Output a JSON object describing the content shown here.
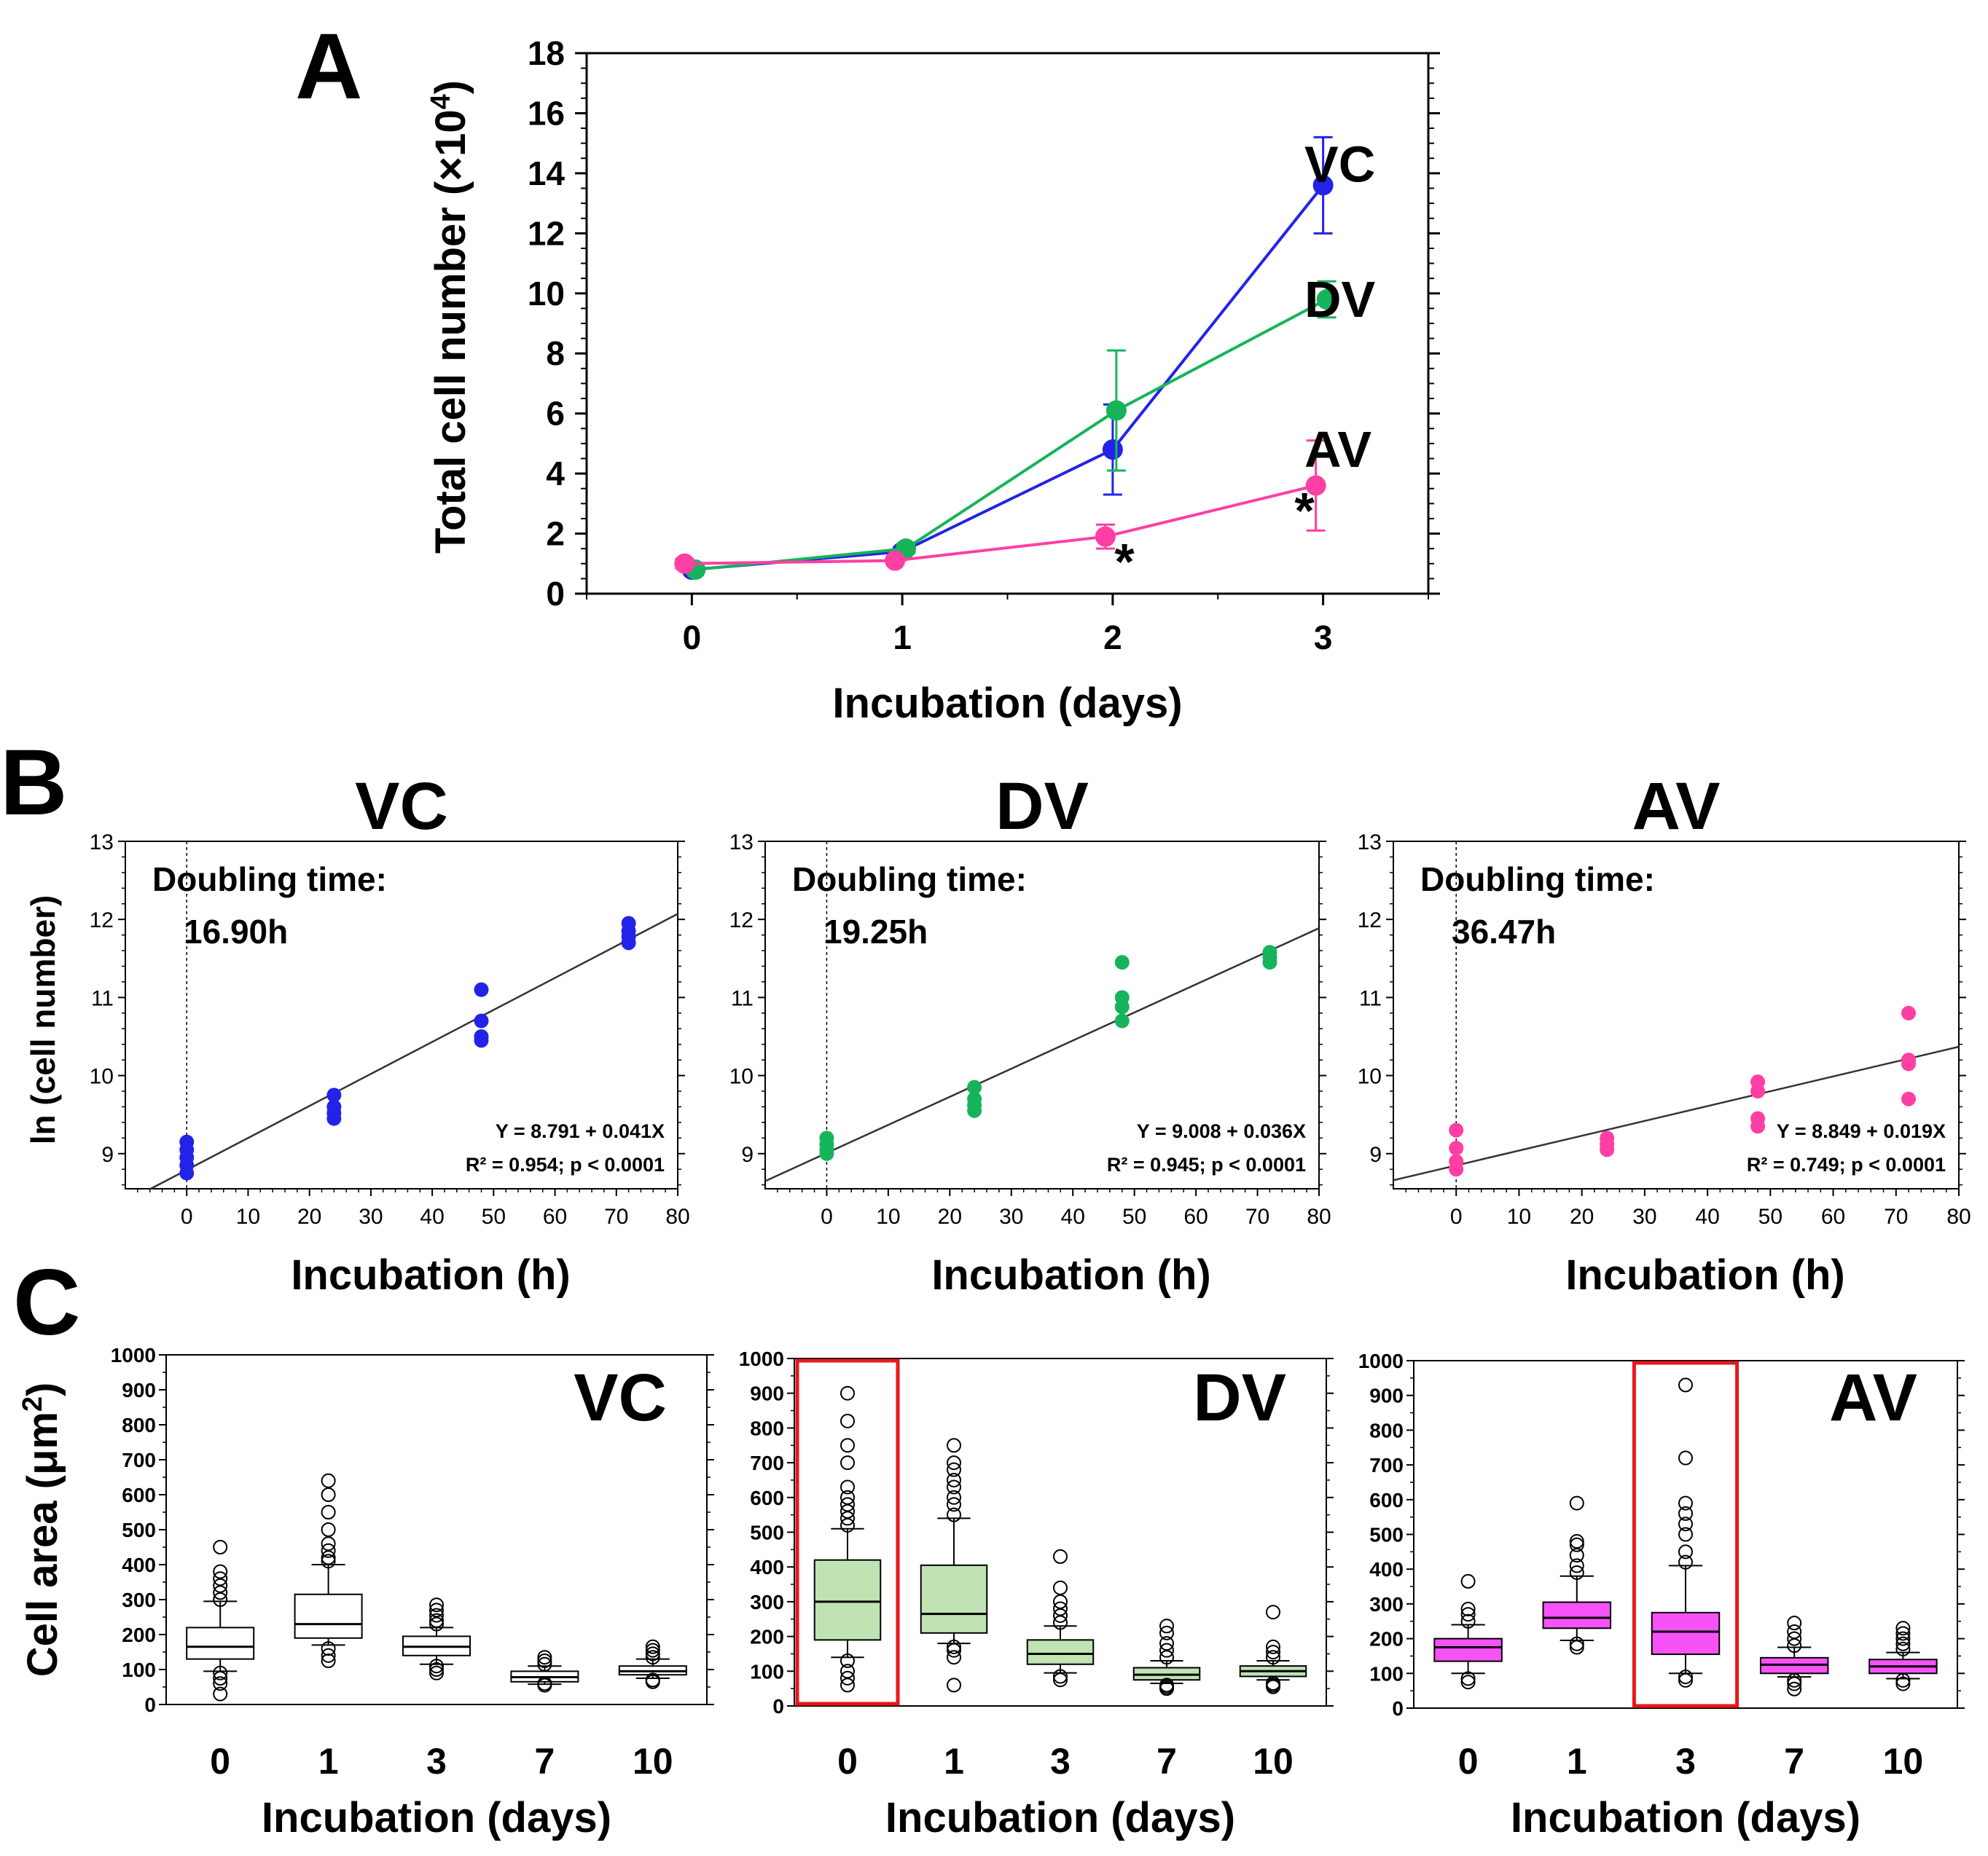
{
  "panel_labels": {
    "A": "A",
    "B": "B",
    "C": "C"
  },
  "colors": {
    "VC": "#2323e8",
    "DV": "#16b45a",
    "AV": "#ff3fa3",
    "VC_box": "#ffffff",
    "DV_box": "#bfe3b3",
    "AV_box": "#f752f7",
    "highlight": "#e8171b"
  },
  "chart_data": [
    {
      "id": "A",
      "type": "line",
      "xlabel": "Incubation (days)",
      "ylabel": "Total cell number (×10⁴)",
      "ylabel_base": "Total cell number (×10",
      "ylabel_exp": "4",
      "ylabel_close": ")",
      "x": [
        0,
        1,
        2,
        3
      ],
      "xlim": [
        -0.5,
        3.5
      ],
      "ylim": [
        0,
        18
      ],
      "yticks": [
        0,
        2,
        4,
        6,
        8,
        10,
        12,
        14,
        16,
        18
      ],
      "series": [
        {
          "name": "VC",
          "color": "#2323e8",
          "values": [
            0.8,
            1.4,
            4.8,
            13.6
          ],
          "err": [
            0.0,
            0.15,
            1.5,
            1.6
          ],
          "label_y": 14.3
        },
        {
          "name": "DV",
          "color": "#16b45a",
          "values": [
            0.8,
            1.5,
            6.1,
            9.8
          ],
          "err": [
            0.0,
            0.15,
            2.0,
            0.6
          ],
          "label_y": 9.8
        },
        {
          "name": "AV",
          "color": "#ff3fa3",
          "values": [
            1.0,
            1.1,
            1.9,
            3.6
          ],
          "err": [
            0.15,
            0.1,
            0.4,
            1.5
          ],
          "label_y": 4.8
        }
      ],
      "annotations": [
        "*",
        "*"
      ]
    },
    {
      "id": "B_VC",
      "type": "scatter",
      "title": "VC",
      "color": "#2323e8",
      "xlabel": "Incubation (h)",
      "ylabel": "ln (cell number)",
      "xlim": [
        -10,
        80
      ],
      "ylim": [
        8.55,
        13
      ],
      "xticks": [
        0,
        10,
        20,
        30,
        40,
        50,
        60,
        70,
        80
      ],
      "yticks": [
        9,
        10,
        11,
        12,
        13
      ],
      "doubling_label": "Doubling time:",
      "doubling_value": "16.90h",
      "equation": "Y = 8.791 + 0.041X",
      "stats": "R² = 0.954; p < 0.0001",
      "fit": {
        "intercept": 8.791,
        "slope": 0.041
      },
      "points": [
        [
          0,
          8.75
        ],
        [
          0,
          8.85
        ],
        [
          0,
          8.95
        ],
        [
          0,
          9.05
        ],
        [
          0,
          9.15
        ],
        [
          24,
          9.45
        ],
        [
          24,
          9.52
        ],
        [
          24,
          9.6
        ],
        [
          24,
          9.75
        ],
        [
          48,
          10.45
        ],
        [
          48,
          10.5
        ],
        [
          48,
          10.7
        ],
        [
          48,
          11.1
        ],
        [
          72,
          11.7
        ],
        [
          72,
          11.78
        ],
        [
          72,
          11.85
        ],
        [
          72,
          11.95
        ]
      ]
    },
    {
      "id": "B_DV",
      "type": "scatter",
      "title": "DV",
      "color": "#16b45a",
      "xlabel": "Incubation (h)",
      "xlim": [
        -10,
        80
      ],
      "ylim": [
        8.55,
        13
      ],
      "xticks": [
        0,
        10,
        20,
        30,
        40,
        50,
        60,
        70,
        80
      ],
      "yticks": [
        9,
        10,
        11,
        12,
        13
      ],
      "doubling_label": "Doubling time:",
      "doubling_value": "19.25h",
      "equation": "Y = 9.008 + 0.036X",
      "stats": "R² = 0.945; p < 0.0001",
      "fit": {
        "intercept": 9.008,
        "slope": 0.036
      },
      "points": [
        [
          0,
          9.0
        ],
        [
          0,
          9.05
        ],
        [
          0,
          9.12
        ],
        [
          0,
          9.2
        ],
        [
          24,
          9.55
        ],
        [
          24,
          9.62
        ],
        [
          24,
          9.7
        ],
        [
          24,
          9.85
        ],
        [
          48,
          10.7
        ],
        [
          48,
          10.88
        ],
        [
          48,
          11.0
        ],
        [
          48,
          11.45
        ],
        [
          72,
          11.45
        ],
        [
          72,
          11.52
        ],
        [
          72,
          11.58
        ]
      ]
    },
    {
      "id": "B_AV",
      "type": "scatter",
      "title": "AV",
      "color": "#ff3fa3",
      "xlabel": "Incubation (h)",
      "xlim": [
        -10,
        80
      ],
      "ylim": [
        8.55,
        13
      ],
      "xticks": [
        0,
        10,
        20,
        30,
        40,
        50,
        60,
        70,
        80
      ],
      "yticks": [
        9,
        10,
        11,
        12,
        13
      ],
      "doubling_label": "Doubling time:",
      "doubling_value": "36.47h",
      "equation": "Y = 8.849 + 0.019X",
      "stats": "R² = 0.749; p < 0.0001",
      "fit": {
        "intercept": 8.849,
        "slope": 0.019
      },
      "points": [
        [
          0,
          8.8
        ],
        [
          0,
          8.9
        ],
        [
          0,
          9.07
        ],
        [
          0,
          9.3
        ],
        [
          24,
          9.05
        ],
        [
          24,
          9.12
        ],
        [
          24,
          9.2
        ],
        [
          48,
          9.35
        ],
        [
          48,
          9.45
        ],
        [
          48,
          9.8
        ],
        [
          48,
          9.92
        ],
        [
          72,
          9.7
        ],
        [
          72,
          10.15
        ],
        [
          72,
          10.2
        ],
        [
          72,
          10.8
        ]
      ]
    },
    {
      "id": "C_VC",
      "type": "box",
      "title": "VC",
      "fill": "#ffffff",
      "ylabel": "Cell area (μm²)",
      "ylabel_base": "Cell area (μm",
      "ylabel_exp": "2",
      "ylabel_close": ")",
      "xlabel": "Incubation (days)",
      "categories": [
        "0",
        "1",
        "3",
        "7",
        "10"
      ],
      "ylim": [
        0,
        1000
      ],
      "yticks": [
        0,
        100,
        200,
        300,
        400,
        500,
        600,
        700,
        800,
        900,
        1000
      ],
      "highlight": [],
      "boxes": [
        {
          "q1": 130,
          "median": 165,
          "q3": 220,
          "lo": 95,
          "hi": 295,
          "outliers": [
            30,
            60,
            75,
            90,
            300,
            320,
            340,
            360,
            380,
            450
          ]
        },
        {
          "q1": 190,
          "median": 230,
          "q3": 315,
          "lo": 170,
          "hi": 400,
          "outliers": [
            125,
            140,
            160,
            410,
            420,
            440,
            460,
            500,
            550,
            600,
            640
          ]
        },
        {
          "q1": 140,
          "median": 165,
          "q3": 195,
          "lo": 115,
          "hi": 220,
          "outliers": [
            90,
            100,
            110,
            230,
            240,
            255,
            270,
            285
          ]
        },
        {
          "q1": 65,
          "median": 78,
          "q3": 95,
          "lo": 58,
          "hi": 110,
          "outliers": [
            55,
            60,
            115,
            125,
            135
          ]
        },
        {
          "q1": 85,
          "median": 95,
          "q3": 110,
          "lo": 75,
          "hi": 130,
          "outliers": [
            65,
            70,
            135,
            145,
            155,
            165
          ]
        }
      ]
    },
    {
      "id": "C_DV",
      "type": "box",
      "title": "DV",
      "fill": "#bfe3b3",
      "xlabel": "Incubation (days)",
      "categories": [
        "0",
        "1",
        "3",
        "7",
        "10"
      ],
      "ylim": [
        0,
        1000
      ],
      "yticks": [
        0,
        100,
        200,
        300,
        400,
        500,
        600,
        700,
        800,
        900,
        1000
      ],
      "highlight": [
        0
      ],
      "boxes": [
        {
          "q1": 190,
          "median": 300,
          "q3": 420,
          "lo": 140,
          "hi": 510,
          "outliers": [
            60,
            80,
            100,
            130,
            520,
            540,
            560,
            580,
            600,
            630,
            700,
            750,
            820,
            900
          ]
        },
        {
          "q1": 210,
          "median": 265,
          "q3": 405,
          "lo": 180,
          "hi": 540,
          "outliers": [
            60,
            140,
            160,
            170,
            550,
            580,
            600,
            630,
            650,
            680,
            700,
            750
          ]
        },
        {
          "q1": 120,
          "median": 150,
          "q3": 190,
          "lo": 95,
          "hi": 230,
          "outliers": [
            75,
            85,
            240,
            260,
            280,
            300,
            340,
            430
          ]
        },
        {
          "q1": 75,
          "median": 90,
          "q3": 110,
          "lo": 65,
          "hi": 130,
          "outliers": [
            50,
            55,
            60,
            140,
            160,
            180,
            210,
            230
          ]
        },
        {
          "q1": 85,
          "median": 100,
          "q3": 115,
          "lo": 75,
          "hi": 130,
          "outliers": [
            55,
            60,
            65,
            140,
            155,
            170,
            270
          ]
        }
      ]
    },
    {
      "id": "C_AV",
      "type": "box",
      "title": "AV",
      "fill": "#f752f7",
      "xlabel": "Incubation (days)",
      "categories": [
        "0",
        "1",
        "3",
        "7",
        "10"
      ],
      "ylim": [
        0,
        1000
      ],
      "yticks": [
        0,
        100,
        200,
        300,
        400,
        500,
        600,
        700,
        800,
        900,
        1000
      ],
      "highlight": [
        2
      ],
      "boxes": [
        {
          "q1": 135,
          "median": 175,
          "q3": 200,
          "lo": 100,
          "hi": 240,
          "outliers": [
            75,
            85,
            250,
            270,
            285,
            365
          ]
        },
        {
          "q1": 230,
          "median": 260,
          "q3": 305,
          "lo": 195,
          "hi": 380,
          "outliers": [
            175,
            185,
            390,
            410,
            440,
            470,
            480,
            590
          ]
        },
        {
          "q1": 155,
          "median": 220,
          "q3": 275,
          "lo": 100,
          "hi": 410,
          "outliers": [
            80,
            90,
            420,
            450,
            500,
            530,
            560,
            590,
            720,
            930
          ]
        },
        {
          "q1": 100,
          "median": 125,
          "q3": 145,
          "lo": 90,
          "hi": 175,
          "outliers": [
            55,
            70,
            80,
            180,
            200,
            220,
            245
          ]
        },
        {
          "q1": 100,
          "median": 120,
          "q3": 140,
          "lo": 85,
          "hi": 160,
          "outliers": [
            70,
            80,
            170,
            185,
            200,
            215,
            230
          ]
        }
      ]
    }
  ]
}
